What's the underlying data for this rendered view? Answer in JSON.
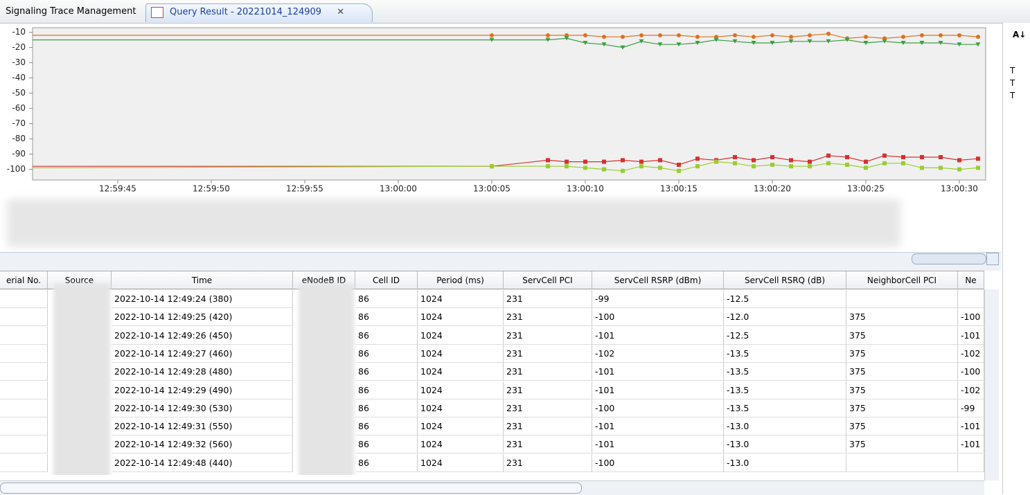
{
  "tabs": [
    "Signaling Trace Management",
    "Query Result - 20221014_124909"
  ],
  "chart_data": {
    "type": "line",
    "x": [
      "12:59:40",
      "13:00:05",
      "13:00:08",
      "13:00:09",
      "13:00:10",
      "13:00:11",
      "13:00:12",
      "13:00:13",
      "13:00:14",
      "13:00:15",
      "13:00:16",
      "13:00:17",
      "13:00:18",
      "13:00:19",
      "13:00:20",
      "13:00:21",
      "13:00:22",
      "13:00:23",
      "13:00:24",
      "13:00:25",
      "13:00:26",
      "13:00:27",
      "13:00:28",
      "13:00:29",
      "13:00:30",
      "13:00:31"
    ],
    "xlim": [
      "12:59:40",
      "13:00:32"
    ],
    "xticks": [
      "12:59:45",
      "12:59:50",
      "12:59:55",
      "13:00:00",
      "13:00:05",
      "13:00:10",
      "13:00:15",
      "13:00:20",
      "13:00:25",
      "13:00:30"
    ],
    "ylim": [
      -107,
      -7
    ],
    "yticks": [
      -10,
      -20,
      -30,
      -40,
      -50,
      -60,
      -70,
      -80,
      -90,
      -100
    ],
    "series": [
      {
        "color": "#e07020",
        "marker": "circle",
        "values": [
          -12,
          -12,
          -12,
          -12,
          -12,
          -13,
          -13,
          -12,
          -12,
          -12,
          -13,
          -13,
          -12,
          -13,
          -12,
          -13,
          -12,
          -11,
          -14,
          -13,
          -14,
          -13,
          -12,
          -12,
          -12,
          -13
        ]
      },
      {
        "color": "#3aa040",
        "marker": "triangle",
        "values": [
          -15,
          -15,
          -15,
          -14,
          -17,
          -18,
          -20,
          -16,
          -18,
          -18,
          -17,
          -15,
          -16,
          -17,
          -17,
          -16,
          -16,
          -16,
          -15,
          -17,
          -16,
          -17,
          -17,
          -17,
          -18,
          -18
        ]
      },
      {
        "color": "#d83030",
        "marker": "square",
        "values": [
          -98,
          -98,
          -94,
          -95,
          -95,
          -95,
          -94,
          -95,
          -94,
          -97,
          -93,
          -94,
          -92,
          -94,
          -92,
          -94,
          -95,
          -91,
          -92,
          -95,
          -91,
          -92,
          -92,
          -92,
          -94,
          -93
        ]
      },
      {
        "color": "#9acd32",
        "marker": "square",
        "values": [
          -99,
          -98,
          -98,
          -98,
          -99,
          -100,
          -101,
          -98,
          -99,
          -101,
          -98,
          -95,
          -96,
          -98,
          -97,
          -98,
          -98,
          -96,
          -97,
          -99,
          -96,
          -96,
          -99,
          -99,
          -100,
          -99
        ]
      }
    ]
  },
  "table": {
    "headers": [
      "erial No.",
      "Source",
      "Time",
      "eNodeB ID",
      "Cell ID",
      "Period (ms)",
      "ServCell PCI",
      "ServCell RSRP (dBm)",
      "ServCell RSRQ (dB)",
      "NeighborCell PCI",
      "Ne"
    ],
    "rows": [
      [
        null,
        null,
        "2022-10-14 12:49:24 (380)",
        null,
        "86",
        "1024",
        "231",
        "-99",
        "-12.5",
        null,
        null
      ],
      [
        null,
        null,
        "2022-10-14 12:49:25 (420)",
        null,
        "86",
        "1024",
        "231",
        "-100",
        "-12.0",
        "375",
        "-100"
      ],
      [
        null,
        null,
        "2022-10-14 12:49:26 (450)",
        null,
        "86",
        "1024",
        "231",
        "-101",
        "-12.5",
        "375",
        "-101"
      ],
      [
        null,
        null,
        "2022-10-14 12:49:27 (460)",
        null,
        "86",
        "1024",
        "231",
        "-102",
        "-13.5",
        "375",
        "-102"
      ],
      [
        null,
        null,
        "2022-10-14 12:49:28 (480)",
        null,
        "86",
        "1024",
        "231",
        "-101",
        "-13.5",
        "375",
        "-100"
      ],
      [
        null,
        null,
        "2022-10-14 12:49:29 (490)",
        null,
        "86",
        "1024",
        "231",
        "-101",
        "-13.5",
        "375",
        "-102"
      ],
      [
        null,
        null,
        "2022-10-14 12:49:30 (530)",
        null,
        "86",
        "1024",
        "231",
        "-100",
        "-13.5",
        "375",
        "-99"
      ],
      [
        null,
        null,
        "2022-10-14 12:49:31 (550)",
        null,
        "86",
        "1024",
        "231",
        "-101",
        "-13.0",
        "375",
        "-101"
      ],
      [
        null,
        null,
        "2022-10-14 12:49:32 (560)",
        null,
        "86",
        "1024",
        "231",
        "-101",
        "-13.0",
        "375",
        "-101"
      ],
      [
        null,
        null,
        "2022-10-14 12:49:48 (440)",
        null,
        "86",
        "1024",
        "231",
        "-100",
        "-13.0",
        null,
        null
      ]
    ]
  },
  "side_panel": {
    "items": [
      "T",
      "T",
      "T"
    ]
  }
}
